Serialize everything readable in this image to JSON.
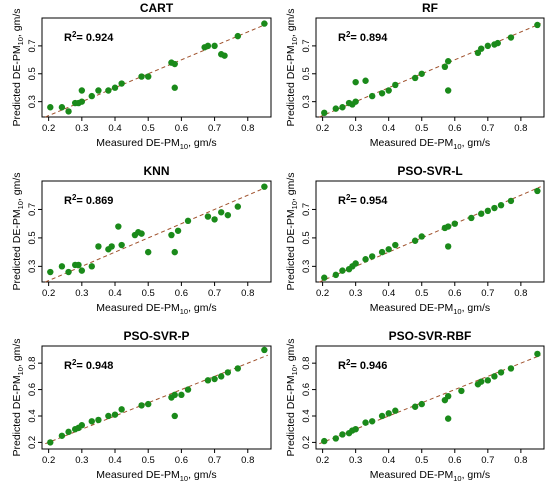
{
  "colors": {
    "point": "#1a8a1a",
    "fit_line": "#a0522d",
    "axis": "#000000"
  },
  "chart_data": [
    {
      "type": "scatter",
      "title": "CART",
      "r2_label": "0.924",
      "xlabel": {
        "main": "Measured DE-PM",
        "sub": "10",
        "unit": ", gm/s"
      },
      "ylabel": {
        "main": "Predicted DE-PM",
        "sub": "10",
        "unit": ", gm/s"
      },
      "xlim": [
        0.18,
        0.87
      ],
      "ylim": [
        0.19,
        0.9
      ],
      "xticks": [
        "0.2",
        "0.3",
        "0.4",
        "0.5",
        "0.6",
        "0.7",
        "0.8"
      ],
      "yticks": [
        "0.3",
        "0.5",
        "0.7"
      ],
      "fit": [
        [
          0.19,
          0.19
        ],
        [
          0.86,
          0.86
        ]
      ],
      "x": [
        0.205,
        0.24,
        0.26,
        0.28,
        0.29,
        0.3,
        0.3,
        0.33,
        0.35,
        0.38,
        0.4,
        0.42,
        0.48,
        0.5,
        0.57,
        0.58,
        0.58,
        0.67,
        0.68,
        0.7,
        0.72,
        0.73,
        0.77,
        0.85
      ],
      "y": [
        0.26,
        0.26,
        0.23,
        0.29,
        0.29,
        0.3,
        0.38,
        0.34,
        0.38,
        0.38,
        0.4,
        0.43,
        0.48,
        0.48,
        0.58,
        0.57,
        0.4,
        0.69,
        0.7,
        0.7,
        0.64,
        0.63,
        0.77,
        0.86
      ]
    },
    {
      "type": "scatter",
      "title": "RF",
      "r2_label": "0.894",
      "xlabel": {
        "main": "Measured DE-PM",
        "sub": "10",
        "unit": ", gm/s"
      },
      "ylabel": {
        "main": "Predicted DE-PM",
        "sub": "10",
        "unit": ", gm/s"
      },
      "xlim": [
        0.18,
        0.87
      ],
      "ylim": [
        0.19,
        0.9
      ],
      "xticks": [
        "0.2",
        "0.3",
        "0.4",
        "0.5",
        "0.6",
        "0.7",
        "0.8"
      ],
      "yticks": [
        "0.3",
        "0.5",
        "0.7"
      ],
      "fit": [
        [
          0.19,
          0.19
        ],
        [
          0.86,
          0.86
        ]
      ],
      "x": [
        0.205,
        0.24,
        0.26,
        0.28,
        0.29,
        0.3,
        0.3,
        0.33,
        0.35,
        0.38,
        0.4,
        0.42,
        0.48,
        0.5,
        0.57,
        0.58,
        0.58,
        0.67,
        0.68,
        0.7,
        0.72,
        0.73,
        0.77,
        0.85
      ],
      "y": [
        0.22,
        0.25,
        0.26,
        0.29,
        0.28,
        0.3,
        0.44,
        0.45,
        0.34,
        0.36,
        0.38,
        0.42,
        0.47,
        0.5,
        0.55,
        0.59,
        0.38,
        0.65,
        0.68,
        0.7,
        0.71,
        0.72,
        0.76,
        0.85
      ]
    },
    {
      "type": "scatter",
      "title": "KNN",
      "r2_label": "0.869",
      "xlabel": {
        "main": "Measured DE-PM",
        "sub": "10",
        "unit": ", gm/s"
      },
      "ylabel": {
        "main": "Predicted DE-PM",
        "sub": "10",
        "unit": ", gm/s"
      },
      "xlim": [
        0.18,
        0.87
      ],
      "ylim": [
        0.19,
        0.9
      ],
      "xticks": [
        "0.2",
        "0.3",
        "0.4",
        "0.5",
        "0.6",
        "0.7",
        "0.8"
      ],
      "yticks": [
        "0.3",
        "0.5",
        "0.7"
      ],
      "fit": [
        [
          0.19,
          0.19
        ],
        [
          0.86,
          0.86
        ]
      ],
      "x": [
        0.205,
        0.24,
        0.26,
        0.28,
        0.29,
        0.3,
        0.33,
        0.35,
        0.38,
        0.39,
        0.41,
        0.42,
        0.46,
        0.47,
        0.48,
        0.5,
        0.57,
        0.58,
        0.59,
        0.62,
        0.68,
        0.7,
        0.72,
        0.74,
        0.77,
        0.85
      ],
      "y": [
        0.26,
        0.3,
        0.26,
        0.31,
        0.31,
        0.27,
        0.3,
        0.44,
        0.42,
        0.44,
        0.58,
        0.45,
        0.52,
        0.54,
        0.53,
        0.4,
        0.52,
        0.4,
        0.55,
        0.62,
        0.65,
        0.63,
        0.68,
        0.66,
        0.72,
        0.86
      ]
    },
    {
      "type": "scatter",
      "title": "PSO-SVR-L",
      "r2_label": "0.954",
      "xlabel": {
        "main": "Measured DE-PM",
        "sub": "10",
        "unit": ", gm/s"
      },
      "ylabel": {
        "main": "Predicted DE-PM",
        "sub": "10",
        "unit": ", gm/s"
      },
      "xlim": [
        0.18,
        0.87
      ],
      "ylim": [
        0.19,
        0.9
      ],
      "xticks": [
        "0.2",
        "0.3",
        "0.4",
        "0.5",
        "0.6",
        "0.7",
        "0.8"
      ],
      "yticks": [
        "0.3",
        "0.5",
        "0.7"
      ],
      "fit": [
        [
          0.19,
          0.19
        ],
        [
          0.86,
          0.86
        ]
      ],
      "x": [
        0.205,
        0.24,
        0.26,
        0.28,
        0.29,
        0.3,
        0.33,
        0.35,
        0.38,
        0.4,
        0.42,
        0.48,
        0.5,
        0.57,
        0.58,
        0.58,
        0.6,
        0.65,
        0.68,
        0.7,
        0.72,
        0.74,
        0.77,
        0.85
      ],
      "y": [
        0.22,
        0.24,
        0.27,
        0.28,
        0.3,
        0.32,
        0.35,
        0.37,
        0.4,
        0.42,
        0.45,
        0.48,
        0.51,
        0.57,
        0.58,
        0.44,
        0.6,
        0.64,
        0.67,
        0.69,
        0.71,
        0.73,
        0.76,
        0.83
      ]
    },
    {
      "type": "scatter",
      "title": "PSO-SVR-P",
      "r2_label": "0.948",
      "xlabel": {
        "main": "Measured DE-PM",
        "sub": "10",
        "unit": ", gm/s"
      },
      "ylabel": {
        "main": "Predicted DE-PM",
        "sub": "10",
        "unit": ", gm/s"
      },
      "xlim": [
        0.18,
        0.87
      ],
      "ylim": [
        0.15,
        0.93
      ],
      "xticks": [
        "0.2",
        "0.3",
        "0.4",
        "0.5",
        "0.6",
        "0.7",
        "0.8"
      ],
      "yticks": [
        "0.2",
        "0.4",
        "0.6",
        "0.8"
      ],
      "fit": [
        [
          0.19,
          0.19
        ],
        [
          0.86,
          0.86
        ]
      ],
      "x": [
        0.205,
        0.24,
        0.26,
        0.28,
        0.29,
        0.3,
        0.33,
        0.35,
        0.38,
        0.4,
        0.42,
        0.48,
        0.5,
        0.57,
        0.58,
        0.58,
        0.6,
        0.62,
        0.68,
        0.7,
        0.72,
        0.74,
        0.77,
        0.85
      ],
      "y": [
        0.2,
        0.25,
        0.28,
        0.3,
        0.31,
        0.33,
        0.36,
        0.37,
        0.4,
        0.41,
        0.45,
        0.48,
        0.49,
        0.54,
        0.56,
        0.4,
        0.56,
        0.6,
        0.67,
        0.68,
        0.7,
        0.73,
        0.76,
        0.9
      ]
    },
    {
      "type": "scatter",
      "title": "PSO-SVR-RBF",
      "r2_label": "0.946",
      "xlabel": {
        "main": "Measured DE-PM",
        "sub": "10",
        "unit": ", gm/s"
      },
      "ylabel": {
        "main": "Predicted DE-PM",
        "sub": "10",
        "unit": ", gm/s"
      },
      "xlim": [
        0.18,
        0.87
      ],
      "ylim": [
        0.15,
        0.93
      ],
      "xticks": [
        "0.2",
        "0.3",
        "0.4",
        "0.5",
        "0.6",
        "0.7",
        "0.8"
      ],
      "yticks": [
        "0.2",
        "0.4",
        "0.6",
        "0.8"
      ],
      "fit": [
        [
          0.19,
          0.19
        ],
        [
          0.86,
          0.86
        ]
      ],
      "x": [
        0.205,
        0.24,
        0.26,
        0.28,
        0.29,
        0.3,
        0.33,
        0.35,
        0.38,
        0.4,
        0.42,
        0.48,
        0.5,
        0.57,
        0.58,
        0.58,
        0.62,
        0.67,
        0.68,
        0.7,
        0.72,
        0.74,
        0.77,
        0.85
      ],
      "y": [
        0.21,
        0.23,
        0.26,
        0.27,
        0.29,
        0.3,
        0.35,
        0.36,
        0.4,
        0.42,
        0.44,
        0.47,
        0.49,
        0.52,
        0.55,
        0.38,
        0.59,
        0.64,
        0.66,
        0.67,
        0.7,
        0.73,
        0.76,
        0.87
      ]
    }
  ]
}
